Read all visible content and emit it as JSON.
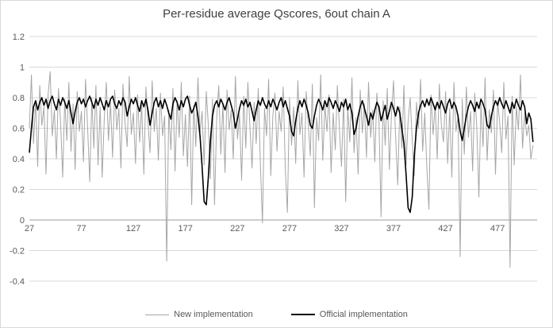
{
  "chart_data": {
    "type": "line",
    "title": "Per-residue average Qscores, 6out chain A",
    "xlabel": "",
    "ylabel": "",
    "xlim": [
      27,
      515
    ],
    "ylim": [
      -0.4,
      1.2
    ],
    "grid": true,
    "legend_position": "bottom",
    "x_start": 27,
    "x_step": 2,
    "x_ticks": [
      27,
      77,
      127,
      177,
      227,
      277,
      327,
      377,
      427,
      477
    ],
    "y_ticks": [
      1.2,
      1,
      0.8,
      0.6,
      0.4,
      0.2,
      0,
      -0.2,
      -0.4
    ],
    "y_tick_labels": [
      "1.2",
      "1",
      "0.8",
      "0.6",
      "0.4",
      "0.2",
      "0",
      "-0.2",
      "-0.4"
    ],
    "colors": {
      "grid": "#d9d9d9",
      "axis": "#9b9b9b",
      "tick_text": "#595959"
    },
    "series": [
      {
        "name": "New implementation",
        "color": "#a6a6a6",
        "width": 1,
        "values": [
          0.6,
          0.95,
          0.5,
          0.78,
          0.35,
          0.88,
          0.62,
          0.74,
          0.3,
          0.82,
          0.97,
          0.55,
          0.72,
          0.4,
          0.86,
          0.65,
          0.28,
          0.79,
          0.52,
          0.9,
          0.45,
          0.76,
          0.33,
          0.84,
          0.58,
          0.71,
          0.38,
          0.92,
          0.61,
          0.25,
          0.8,
          0.47,
          0.88,
          0.36,
          0.74,
          0.28,
          0.66,
          0.9,
          0.52,
          0.77,
          0.41,
          0.85,
          0.59,
          0.73,
          0.34,
          0.89,
          0.63,
          0.48,
          0.94,
          0.56,
          0.7,
          0.37,
          0.82,
          0.51,
          0.75,
          0.3,
          0.87,
          0.64,
          0.44,
          0.91,
          0.58,
          0.73,
          0.39,
          0.83,
          0.55,
          0.68,
          -0.27,
          0.72,
          0.46,
          0.86,
          0.32,
          0.78,
          0.54,
          0.9,
          0.42,
          0.69,
          0.35,
          0.81,
          0.1,
          0.75,
          0.48,
          0.93,
          0.57,
          0.71,
          0.36,
          0.84,
          0.62,
          0.27,
          0.79,
          0.1,
          0.66,
          0.88,
          0.43,
          0.76,
          0.31,
          0.85,
          0.59,
          0.72,
          0.4,
          0.94,
          0.53,
          0.69,
          0.26,
          0.81,
          0.47,
          0.9,
          0.61,
          0.34,
          0.77,
          0.5,
          0.86,
          0.38,
          -0.02,
          0.73,
          0.55,
          0.92,
          0.29,
          0.68,
          0.83,
          0.45,
          0.71,
          0.58,
          0.87,
          0.33,
          0.05,
          0.8,
          0.49,
          0.74,
          0.37,
          0.91,
          0.56,
          0.7,
          0.28,
          0.84,
          0.63,
          0.42,
          0.89,
          0.08,
          0.67,
          0.52,
          0.95,
          0.39,
          0.75,
          0.58,
          0.82,
          0.31,
          0.7,
          0.46,
          0.88,
          0.6,
          0.35,
          0.79,
          0.12,
          0.73,
          0.51,
          0.93,
          0.44,
          0.67,
          0.3,
          0.85,
          0.57,
          0.76,
          0.41,
          0.9,
          0.54,
          0.72,
          0.38,
          0.83,
          0.64,
          0.02,
          0.78,
          0.49,
          0.86,
          0.33,
          0.69,
          0.91,
          0.55,
          0.23,
          0.74,
          0.47,
          0.88,
          0.36,
          0.65,
          0.8,
          0.52,
          0.29,
          0.77,
          0.6,
          0.92,
          0.45,
          0.7,
          0.34,
          0.07,
          0.82,
          0.56,
          0.75,
          0.4,
          0.89,
          0.62,
          0.51,
          0.84,
          0.37,
          0.73,
          0.28,
          0.9,
          0.58,
          0.68,
          -0.24,
          0.79,
          0.43,
          0.87,
          0.54,
          0.71,
          0.32,
          0.83,
          0.61,
          0.15,
          0.76,
          0.48,
          0.93,
          0.39,
          0.72,
          0.57,
          0.85,
          0.3,
          0.78,
          0.64,
          0.44,
          0.9,
          0.53,
          0.68,
          -0.31,
          0.81,
          0.36,
          0.74,
          0.59,
          0.95,
          0.47,
          0.7,
          0.55,
          0.62,
          0.4,
          0.49
        ]
      },
      {
        "name": "Official implementation",
        "color": "#000000",
        "width": 1.6,
        "values": [
          0.44,
          0.6,
          0.74,
          0.78,
          0.72,
          0.77,
          0.8,
          0.75,
          0.79,
          0.73,
          0.78,
          0.81,
          0.76,
          0.72,
          0.79,
          0.75,
          0.8,
          0.77,
          0.73,
          0.78,
          0.7,
          0.63,
          0.71,
          0.77,
          0.8,
          0.76,
          0.79,
          0.74,
          0.78,
          0.81,
          0.77,
          0.73,
          0.79,
          0.75,
          0.8,
          0.76,
          0.72,
          0.78,
          0.74,
          0.79,
          0.81,
          0.76,
          0.73,
          0.78,
          0.75,
          0.8,
          0.77,
          0.68,
          0.74,
          0.79,
          0.76,
          0.8,
          0.75,
          0.71,
          0.78,
          0.74,
          0.79,
          0.72,
          0.62,
          0.7,
          0.77,
          0.8,
          0.74,
          0.78,
          0.73,
          0.79,
          0.75,
          0.7,
          0.66,
          0.76,
          0.8,
          0.77,
          0.72,
          0.78,
          0.74,
          0.79,
          0.81,
          0.75,
          0.7,
          0.73,
          0.77,
          0.68,
          0.55,
          0.35,
          0.12,
          0.1,
          0.28,
          0.52,
          0.68,
          0.75,
          0.78,
          0.74,
          0.79,
          0.76,
          0.72,
          0.77,
          0.8,
          0.75,
          0.7,
          0.6,
          0.66,
          0.73,
          0.78,
          0.75,
          0.79,
          0.74,
          0.77,
          0.71,
          0.65,
          0.72,
          0.78,
          0.75,
          0.8,
          0.76,
          0.73,
          0.78,
          0.74,
          0.79,
          0.76,
          0.72,
          0.77,
          0.8,
          0.74,
          0.78,
          0.73,
          0.68,
          0.58,
          0.55,
          0.65,
          0.73,
          0.78,
          0.74,
          0.79,
          0.75,
          0.7,
          0.62,
          0.6,
          0.68,
          0.75,
          0.79,
          0.76,
          0.72,
          0.78,
          0.74,
          0.8,
          0.77,
          0.73,
          0.78,
          0.75,
          0.71,
          0.77,
          0.74,
          0.79,
          0.72,
          0.76,
          0.7,
          0.56,
          0.6,
          0.68,
          0.74,
          0.78,
          0.73,
          0.68,
          0.62,
          0.7,
          0.66,
          0.72,
          0.77,
          0.74,
          0.65,
          0.7,
          0.75,
          0.66,
          0.71,
          0.77,
          0.73,
          0.68,
          0.74,
          0.7,
          0.6,
          0.5,
          0.3,
          0.08,
          0.05,
          0.15,
          0.42,
          0.6,
          0.7,
          0.75,
          0.78,
          0.74,
          0.79,
          0.75,
          0.8,
          0.76,
          0.72,
          0.77,
          0.73,
          0.78,
          0.74,
          0.7,
          0.76,
          0.79,
          0.73,
          0.77,
          0.74,
          0.68,
          0.58,
          0.52,
          0.6,
          0.68,
          0.74,
          0.78,
          0.75,
          0.71,
          0.77,
          0.73,
          0.79,
          0.76,
          0.72,
          0.62,
          0.6,
          0.68,
          0.74,
          0.78,
          0.75,
          0.8,
          0.76,
          0.73,
          0.78,
          0.74,
          0.7,
          0.77,
          0.73,
          0.79,
          0.75,
          0.72,
          0.78,
          0.74,
          0.63,
          0.7,
          0.66,
          0.51
        ]
      }
    ]
  }
}
